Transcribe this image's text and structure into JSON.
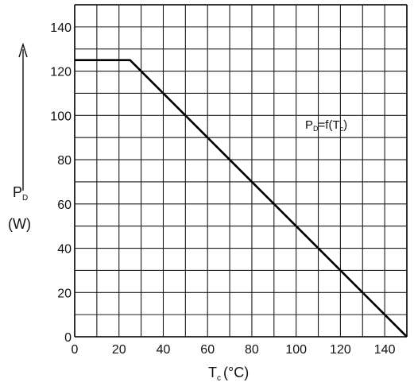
{
  "chart_data": {
    "type": "line",
    "xlim": [
      0,
      150
    ],
    "ylim": [
      0,
      150
    ],
    "x_ticks": [
      0,
      20,
      40,
      60,
      80,
      100,
      120,
      140
    ],
    "y_ticks": [
      0,
      20,
      40,
      60,
      80,
      100,
      120,
      140
    ],
    "grid": true,
    "grid_step": 10,
    "xlabel": {
      "main": "T",
      "sub": "c",
      "unit": "(°C)"
    },
    "ylabel": {
      "main": "P",
      "sub": "D",
      "unit": "(W)"
    },
    "annotation": {
      "p": "P",
      "d": "D",
      "mid": "=f(T",
      "c": "c",
      "end": ")"
    },
    "series": [
      {
        "x": [
          0,
          25,
          150
        ],
        "y": [
          125,
          125,
          0
        ]
      }
    ]
  }
}
